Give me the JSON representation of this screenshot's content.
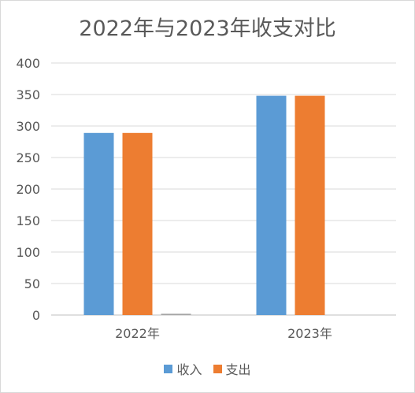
{
  "chart_data": {
    "type": "bar",
    "title": "2022年与2023年收支对比",
    "categories": [
      "2022年",
      "2023年"
    ],
    "series": [
      {
        "name": "收入",
        "values": [
          289,
          348
        ],
        "color": "#5b9bd5"
      },
      {
        "name": "支出",
        "values": [
          289,
          348
        ],
        "color": "#ed7d31"
      },
      {
        "name": "",
        "values": [
          2,
          0
        ],
        "color": "#a5a5a5"
      }
    ],
    "ylim": [
      0,
      400
    ],
    "yticks": [
      0,
      50,
      100,
      150,
      200,
      250,
      300,
      350,
      400
    ],
    "grid": true,
    "legend": "bottom",
    "xlabel": "",
    "ylabel": ""
  }
}
